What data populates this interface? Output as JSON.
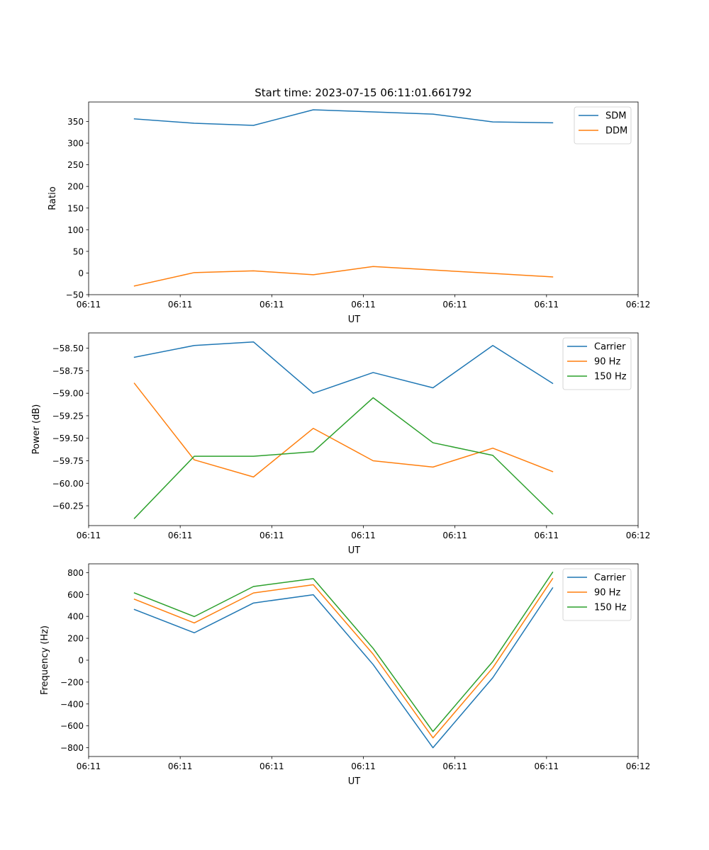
{
  "colors": {
    "blue": "#1f77b4",
    "orange": "#ff7f0e",
    "green": "#2ca02c"
  },
  "chart_data": [
    {
      "type": "line",
      "title": "Start time: 2023-07-15 06:11:01.661792",
      "xlabel": "UT",
      "ylabel": "Ratio",
      "xlim": [
        0,
        9
      ],
      "xticks": [
        0,
        1.5,
        3,
        4.5,
        6,
        7.5,
        9
      ],
      "xtick_labels": [
        "06:11",
        "06:11",
        "06:11",
        "06:11",
        "06:11",
        "06:11",
        "06:12"
      ],
      "ylim": [
        -50,
        395
      ],
      "yticks": [
        -50,
        0,
        50,
        100,
        150,
        200,
        250,
        300,
        350
      ],
      "ytick_labels": [
        "−50",
        "0",
        "50",
        "100",
        "150",
        "200",
        "250",
        "300",
        "350"
      ],
      "legend_position": "top-right",
      "x": [
        0.75,
        1.73,
        2.7,
        3.68,
        4.66,
        5.64,
        6.62,
        7.6
      ],
      "series": [
        {
          "name": "SDM",
          "color": "#1f77b4",
          "values": [
            356,
            346,
            341,
            377,
            372,
            367,
            349,
            347
          ]
        },
        {
          "name": "DDM",
          "color": "#ff7f0e",
          "values": [
            -30,
            1,
            5,
            -4,
            15,
            7,
            -1,
            -9
          ]
        }
      ]
    },
    {
      "type": "line",
      "title": "",
      "xlabel": "UT",
      "ylabel": "Power (dB)",
      "xlim": [
        0,
        9
      ],
      "xticks": [
        0,
        1.5,
        3,
        4.5,
        6,
        7.5,
        9
      ],
      "xtick_labels": [
        "06:11",
        "06:11",
        "06:11",
        "06:11",
        "06:11",
        "06:11",
        "06:12"
      ],
      "ylim": [
        -60.47,
        -58.33
      ],
      "yticks": [
        -60.25,
        -60.0,
        -59.75,
        -59.5,
        -59.25,
        -59.0,
        -58.75,
        -58.5
      ],
      "ytick_labels": [
        "−60.25",
        "−60.00",
        "−59.75",
        "−59.50",
        "−59.25",
        "−59.00",
        "−58.75",
        "−58.50"
      ],
      "legend_position": "top-right",
      "x": [
        0.75,
        1.73,
        2.7,
        3.68,
        4.66,
        5.64,
        6.62,
        7.6
      ],
      "series": [
        {
          "name": "Carrier",
          "color": "#1f77b4",
          "values": [
            -58.6,
            -58.47,
            -58.43,
            -59.0,
            -58.77,
            -58.94,
            -58.47,
            -58.89
          ]
        },
        {
          "name": "90 Hz",
          "color": "#ff7f0e",
          "values": [
            -58.89,
            -59.74,
            -59.93,
            -59.39,
            -59.75,
            -59.82,
            -59.61,
            -59.87
          ]
        },
        {
          "name": "150 Hz",
          "color": "#2ca02c",
          "values": [
            -60.39,
            -59.7,
            -59.7,
            -59.65,
            -59.05,
            -59.55,
            -59.69,
            -60.34
          ]
        }
      ]
    },
    {
      "type": "line",
      "title": "",
      "xlabel": "UT",
      "ylabel": "Frequency (Hz)",
      "xlim": [
        0,
        9
      ],
      "xticks": [
        0,
        1.5,
        3,
        4.5,
        6,
        7.5,
        9
      ],
      "xtick_labels": [
        "06:11",
        "06:11",
        "06:11",
        "06:11",
        "06:11",
        "06:11",
        "06:12"
      ],
      "ylim": [
        -880,
        880
      ],
      "yticks": [
        -800,
        -600,
        -400,
        -200,
        0,
        200,
        400,
        600,
        800
      ],
      "ytick_labels": [
        "−800",
        "−600",
        "−400",
        "−200",
        "0",
        "200",
        "400",
        "600",
        "800"
      ],
      "legend_position": "top-right",
      "x": [
        0.75,
        1.73,
        2.7,
        3.68,
        4.66,
        5.64,
        6.62,
        7.6
      ],
      "series": [
        {
          "name": "Carrier",
          "color": "#1f77b4",
          "values": [
            463,
            250,
            522,
            598,
            -40,
            -800,
            -160,
            660
          ]
        },
        {
          "name": "90 Hz",
          "color": "#ff7f0e",
          "values": [
            557,
            340,
            614,
            689,
            55,
            -710,
            -70,
            745
          ]
        },
        {
          "name": "150 Hz",
          "color": "#2ca02c",
          "values": [
            614,
            398,
            673,
            745,
            108,
            -652,
            -12,
            803
          ]
        }
      ]
    }
  ]
}
